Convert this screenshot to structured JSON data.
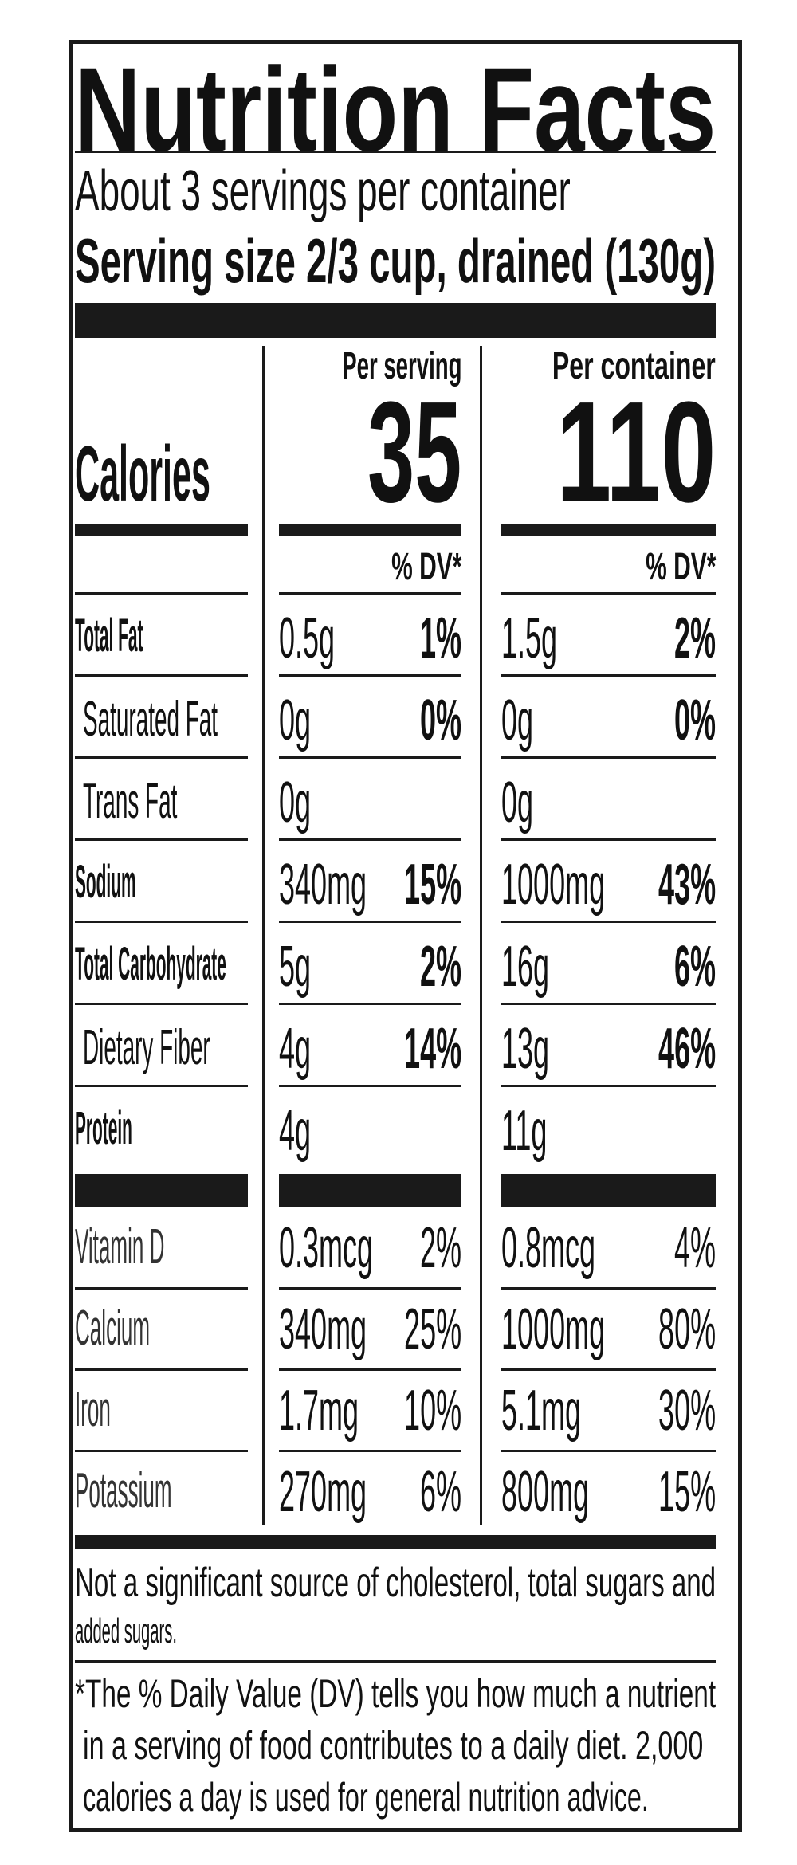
{
  "title": "Nutrition Facts",
  "servings_per_container": "About 3 servings per container",
  "serving_size": "Serving size 2/3 cup, drained (130g)",
  "columns": {
    "per_serving_label": "Per serving",
    "per_container_label": "Per container",
    "dv_label": "% DV*"
  },
  "calories": {
    "label": "Calories",
    "per_serving": "35",
    "per_container": "110"
  },
  "nutrients": [
    {
      "label": "Total Fat",
      "bold": true,
      "indent": false,
      "serving_amount": "0.5g",
      "serving_dv": "1%",
      "container_amount": "1.5g",
      "container_dv": "2%"
    },
    {
      "label": "Saturated Fat",
      "bold": false,
      "indent": true,
      "serving_amount": "0g",
      "serving_dv": "0%",
      "container_amount": "0g",
      "container_dv": "0%"
    },
    {
      "label": "Trans Fat",
      "bold": false,
      "indent": true,
      "serving_amount": "0g",
      "serving_dv": "",
      "container_amount": "0g",
      "container_dv": ""
    },
    {
      "label": "Sodium",
      "bold": true,
      "indent": false,
      "serving_amount": "340mg",
      "serving_dv": "15%",
      "container_amount": "1000mg",
      "container_dv": "43%"
    },
    {
      "label": "Total Carbohydrate",
      "bold": true,
      "indent": false,
      "serving_amount": "5g",
      "serving_dv": "2%",
      "container_amount": "16g",
      "container_dv": "6%"
    },
    {
      "label": "Dietary Fiber",
      "bold": false,
      "indent": true,
      "serving_amount": "4g",
      "serving_dv": "14%",
      "container_amount": "13g",
      "container_dv": "46%"
    },
    {
      "label": "Protein",
      "bold": true,
      "indent": false,
      "serving_amount": "4g",
      "serving_dv": "",
      "container_amount": "11g",
      "container_dv": ""
    }
  ],
  "vitamins": [
    {
      "label": "Vitamin D",
      "serving_amount": "0.3mcg",
      "serving_dv": "2%",
      "container_amount": "0.8mcg",
      "container_dv": "4%"
    },
    {
      "label": "Calcium",
      "serving_amount": "340mg",
      "serving_dv": "25%",
      "container_amount": "1000mg",
      "container_dv": "80%"
    },
    {
      "label": "Iron",
      "serving_amount": "1.7mg",
      "serving_dv": "10%",
      "container_amount": "5.1mg",
      "container_dv": "30%"
    },
    {
      "label": "Potassium",
      "serving_amount": "270mg",
      "serving_dv": "6%",
      "container_amount": "800mg",
      "container_dv": "15%"
    }
  ],
  "footnotes": {
    "not_significant_1": "Not a significant source of cholesterol, total sugars and",
    "not_significant_2": "added sugars.",
    "dv_1": "*The % Daily Value (DV) tells you how much a nutrient",
    "dv_2": "in a serving of food contributes to a daily diet. 2,000",
    "dv_3": "calories a day is used for general nutrition advice."
  }
}
